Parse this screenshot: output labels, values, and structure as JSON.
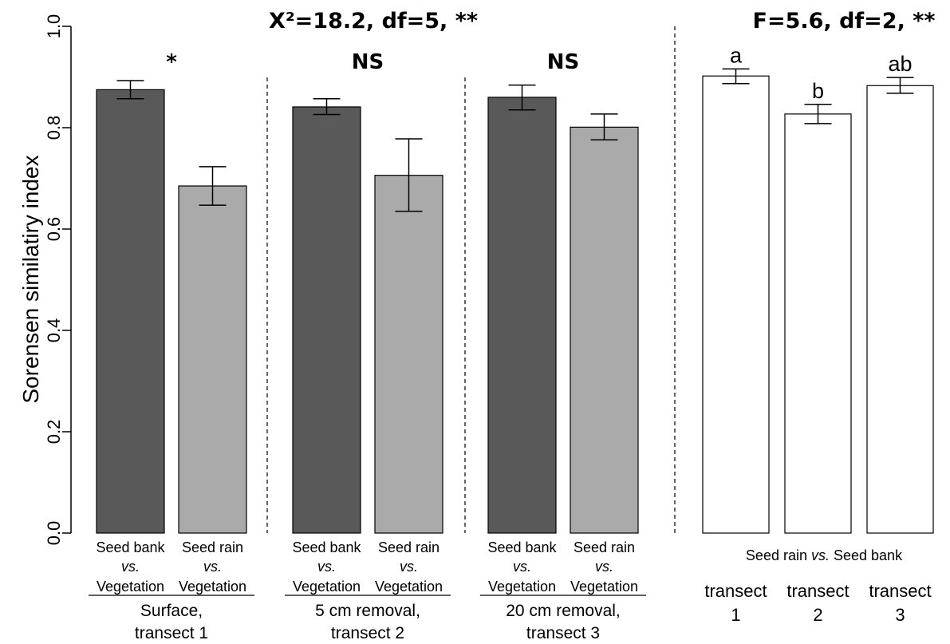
{
  "chart_data": [
    {
      "type": "bar",
      "title": "X²=18.2, df=5, **",
      "ylabel": "Sorensen similatiry index",
      "ylim": [
        0,
        1
      ],
      "yticks": [
        "0.0",
        "0.2",
        "0.4",
        "0.6",
        "0.8",
        "1.0"
      ],
      "colors": {
        "seed_bank": "#595959",
        "seed_rain": "#aaaaaa"
      },
      "groups": [
        {
          "label_line1": "Surface,",
          "label_line2": "transect 1",
          "significance": "*",
          "bars": [
            {
              "line1": "Seed bank",
              "line2": "vs.",
              "line3": "Vegetation",
              "value": 0.875,
              "err_low": 0.857,
              "err_high": 0.893,
              "kind": "seed_bank"
            },
            {
              "line1": "Seed rain",
              "line2": "vs.",
              "line3": "Vegetation",
              "value": 0.685,
              "err_low": 0.647,
              "err_high": 0.723,
              "kind": "seed_rain"
            }
          ]
        },
        {
          "label_line1": "5 cm removal,",
          "label_line2": "transect 2",
          "significance": "NS",
          "bars": [
            {
              "line1": "Seed bank",
              "line2": "vs.",
              "line3": "Vegetation",
              "value": 0.841,
              "err_low": 0.826,
              "err_high": 0.857,
              "kind": "seed_bank"
            },
            {
              "line1": "Seed rain",
              "line2": "vs.",
              "line3": "Vegetation",
              "value": 0.706,
              "err_low": 0.635,
              "err_high": 0.778,
              "kind": "seed_rain"
            }
          ]
        },
        {
          "label_line1": "20 cm removal,",
          "label_line2": "transect 3",
          "significance": "NS",
          "bars": [
            {
              "line1": "Seed bank",
              "line2": "vs.",
              "line3": "Vegetation",
              "value": 0.86,
              "err_low": 0.835,
              "err_high": 0.884,
              "kind": "seed_bank"
            },
            {
              "line1": "Seed rain",
              "line2": "vs.",
              "line3": "Vegetation",
              "value": 0.801,
              "err_low": 0.776,
              "err_high": 0.827,
              "kind": "seed_rain"
            }
          ]
        }
      ]
    },
    {
      "type": "bar",
      "title": "F=5.6, df=2, **",
      "xlabel_prefix": "Seed rain",
      "xlabel_vs": "vs.",
      "xlabel_suffix": "Seed bank",
      "colors": {
        "fill": "#ffffff"
      },
      "bars": [
        {
          "line1": "transect",
          "line2": "1",
          "letter": "a",
          "value": 0.902,
          "err_low": 0.887,
          "err_high": 0.916
        },
        {
          "line1": "transect",
          "line2": "2",
          "letter": "b",
          "value": 0.827,
          "err_low": 0.808,
          "err_high": 0.846
        },
        {
          "line1": "transect",
          "line2": "3",
          "letter": "ab",
          "value": 0.883,
          "err_low": 0.868,
          "err_high": 0.899
        }
      ]
    }
  ]
}
